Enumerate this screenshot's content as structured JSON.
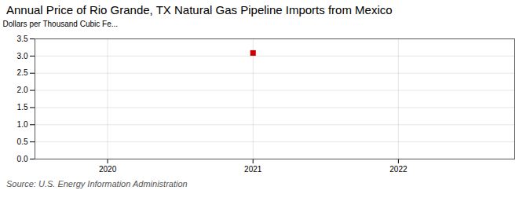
{
  "chart_data": {
    "type": "scatter",
    "title": "Annual Price of Rio Grande, TX Natural Gas Pipeline Imports from Mexico",
    "ylabel": "Dollars per Thousand Cubic Fe...",
    "source": "Source: U.S. Energy Information Administration",
    "x": [
      2021
    ],
    "values": [
      3.09
    ],
    "color": "#cc0000",
    "marker": "square",
    "xlim": [
      2019.5,
      2022.8
    ],
    "xticks": [
      2020,
      2021,
      2022
    ],
    "ylim": [
      0.0,
      3.5
    ],
    "yticks": [
      {
        "value": 0.0,
        "label": "0.0"
      },
      0.5,
      {
        "value": 1.0,
        "label": "1.0"
      },
      1.5,
      {
        "value": 2.0,
        "label": "2.0"
      },
      2.5,
      {
        "value": 3.0,
        "label": "3.0"
      },
      3.5
    ],
    "grid": true
  }
}
